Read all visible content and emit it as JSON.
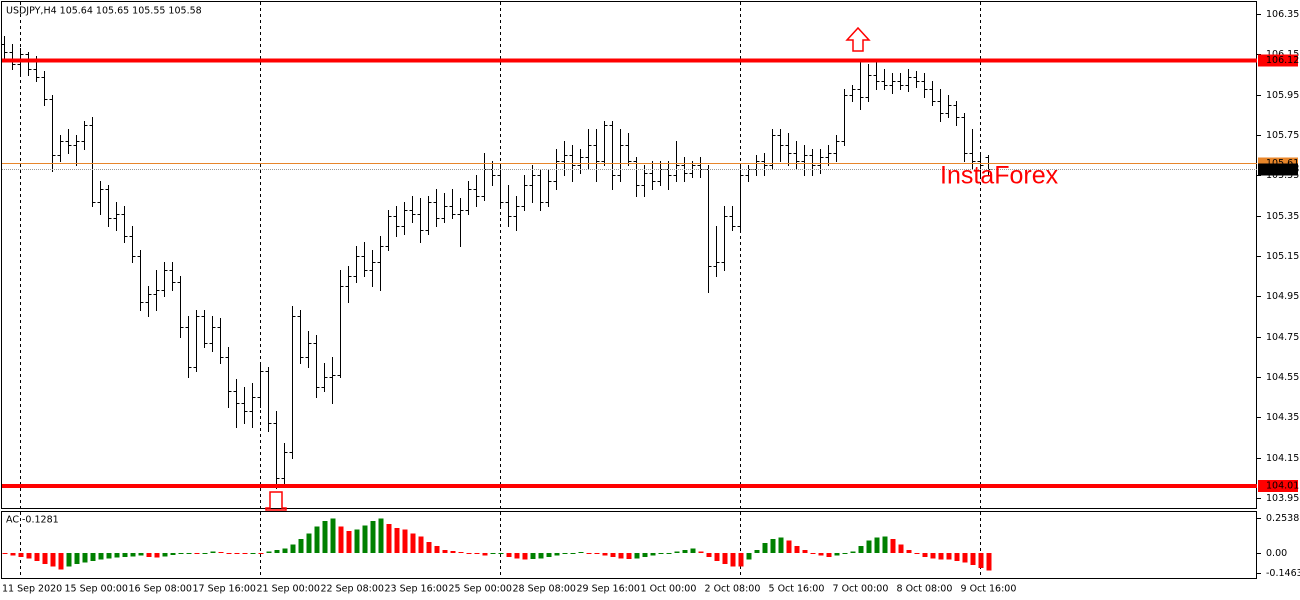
{
  "chart_data": [
    {
      "type": "ohlc",
      "title": "USDJPY,H4  105.64 105.65 105.55 105.58",
      "watermark": "InstaForex",
      "color": "#000000",
      "categories": [
        "11 Sep 2020",
        null,
        null,
        null,
        null,
        null,
        null,
        null,
        "15 Sep 00:00",
        null,
        null,
        null,
        null,
        null,
        null,
        null,
        "16 Sep 08:00",
        null,
        null,
        null,
        null,
        null,
        null,
        null,
        "17 Sep 16:00",
        null,
        null,
        null,
        null,
        null,
        null,
        null,
        "21 Sep 00:00",
        null,
        null,
        null,
        null,
        null,
        null,
        null,
        "22 Sep 08:00",
        null,
        null,
        null,
        null,
        null,
        null,
        null,
        "23 Sep 16:00",
        null,
        null,
        null,
        null,
        null,
        null,
        null,
        "25 Sep 00:00",
        null,
        null,
        null,
        null,
        null,
        null,
        null,
        "28 Sep 08:00",
        null,
        null,
        null,
        null,
        null,
        null,
        null,
        "29 Sep 16:00",
        null,
        null,
        null,
        null,
        null,
        null,
        null,
        "1 Oct 00:00",
        null,
        null,
        null,
        null,
        null,
        null,
        null,
        "2 Oct 08:00",
        null,
        null,
        null,
        null,
        null,
        null,
        null,
        "5 Oct 16:00",
        null,
        null,
        null,
        null,
        null,
        null,
        null,
        "7 Oct 00:00",
        null,
        null,
        null,
        null,
        null,
        null,
        null,
        "8 Oct 08:00",
        null,
        null,
        null,
        null,
        null,
        null,
        null,
        "9 Oct 16:00",
        null,
        null,
        null
      ],
      "open": [
        106.2,
        106.16,
        106.1,
        106.15,
        106.08,
        106.04,
        105.93,
        105.65,
        105.72,
        105.7,
        105.72,
        105.8,
        105.42,
        105.48,
        105.34,
        105.36,
        105.25,
        105.15,
        104.92,
        104.96,
        104.98,
        105.08,
        105.02,
        104.8,
        104.6,
        104.85,
        104.72,
        104.8,
        104.65,
        104.48,
        104.42,
        104.38,
        104.45,
        104.58,
        104.32,
        104.05,
        104.18,
        104.85,
        104.65,
        104.72,
        104.5,
        104.55,
        104.56,
        105.0,
        105.05,
        105.15,
        105.08,
        105.12,
        105.2,
        105.35,
        105.3,
        105.38,
        105.36,
        105.28,
        105.42,
        105.34,
        105.4,
        105.36,
        105.38,
        105.48,
        105.45,
        105.58,
        105.55,
        105.42,
        105.35,
        105.4,
        105.5,
        105.55,
        105.42,
        105.52,
        105.62,
        105.65,
        105.6,
        105.64,
        105.7,
        105.62,
        105.8,
        105.55,
        105.7,
        105.62,
        105.5,
        105.56,
        105.52,
        105.58,
        105.55,
        105.6,
        105.56,
        105.6,
        105.58,
        105.1,
        105.12,
        105.35,
        105.3,
        105.55,
        105.58,
        105.62,
        105.6,
        105.75,
        105.7,
        105.66,
        105.62,
        105.65,
        105.6,
        105.64,
        105.66,
        105.72,
        105.95,
        105.98,
        105.94,
        106.05,
        106.02,
        106.0,
        106.02,
        106.0,
        106.04,
        106.02,
        105.98,
        105.92,
        105.86,
        105.9,
        105.84,
        105.66,
        105.62,
        105.64
      ],
      "high": [
        106.24,
        106.2,
        106.18,
        106.16,
        106.14,
        106.07,
        105.95,
        105.75,
        105.78,
        105.75,
        105.82,
        105.84,
        105.52,
        105.5,
        105.42,
        105.4,
        105.3,
        105.18,
        105.0,
        105.08,
        105.12,
        105.12,
        105.05,
        104.85,
        104.88,
        104.88,
        104.85,
        104.84,
        104.7,
        104.54,
        104.5,
        104.52,
        104.62,
        104.6,
        104.38,
        104.22,
        104.9,
        104.88,
        104.78,
        104.76,
        104.62,
        104.65,
        105.08,
        105.1,
        105.2,
        105.22,
        105.18,
        105.25,
        105.38,
        105.4,
        105.42,
        105.45,
        105.44,
        105.45,
        105.48,
        105.46,
        105.48,
        105.44,
        105.52,
        105.55,
        105.66,
        105.62,
        105.6,
        105.5,
        105.45,
        105.55,
        105.6,
        105.58,
        105.58,
        105.68,
        105.72,
        105.7,
        105.68,
        105.78,
        105.78,
        105.82,
        105.82,
        105.78,
        105.76,
        105.64,
        105.6,
        105.62,
        105.62,
        105.62,
        105.72,
        105.64,
        105.62,
        105.64,
        105.6,
        105.3,
        105.4,
        105.4,
        105.6,
        105.6,
        105.65,
        105.66,
        105.78,
        105.78,
        105.76,
        105.72,
        105.7,
        105.68,
        105.68,
        105.7,
        105.75,
        105.98,
        106.0,
        106.12,
        106.1,
        106.12,
        106.08,
        106.06,
        106.06,
        106.08,
        106.07,
        106.06,
        106.02,
        105.98,
        105.95,
        105.92,
        105.86,
        105.78,
        105.65,
        105.65
      ],
      "low": [
        106.12,
        106.08,
        106.06,
        106.05,
        106.02,
        105.9,
        105.57,
        105.62,
        105.66,
        105.6,
        105.68,
        105.4,
        105.36,
        105.3,
        105.28,
        105.22,
        105.12,
        104.88,
        104.85,
        104.88,
        104.95,
        104.98,
        104.75,
        104.55,
        104.58,
        104.7,
        104.68,
        104.62,
        104.4,
        104.3,
        104.32,
        104.3,
        104.4,
        104.28,
        104.0,
        104.02,
        104.15,
        104.62,
        104.6,
        104.45,
        104.48,
        104.42,
        104.55,
        104.92,
        105.02,
        105.05,
        105.0,
        104.98,
        105.18,
        105.25,
        105.26,
        105.32,
        105.22,
        105.26,
        105.3,
        105.32,
        105.34,
        105.2,
        105.36,
        105.4,
        105.43,
        105.5,
        105.4,
        105.3,
        105.28,
        105.38,
        105.42,
        105.38,
        105.4,
        105.48,
        105.55,
        105.52,
        105.56,
        105.58,
        105.52,
        105.6,
        105.48,
        105.52,
        105.6,
        105.45,
        105.45,
        105.48,
        105.5,
        105.48,
        105.52,
        105.52,
        105.54,
        105.54,
        104.97,
        105.05,
        105.08,
        105.28,
        105.28,
        105.52,
        105.55,
        105.55,
        105.58,
        105.62,
        105.6,
        105.58,
        105.55,
        105.55,
        105.56,
        105.6,
        105.62,
        105.7,
        105.92,
        105.88,
        105.92,
        105.98,
        105.98,
        105.96,
        105.98,
        105.97,
        105.99,
        105.94,
        105.9,
        105.82,
        105.84,
        105.8,
        105.62,
        105.58,
        105.55,
        105.55
      ],
      "close": [
        106.16,
        106.1,
        106.15,
        106.08,
        106.04,
        105.93,
        105.65,
        105.72,
        105.7,
        105.72,
        105.8,
        105.42,
        105.48,
        105.34,
        105.36,
        105.25,
        105.15,
        104.92,
        104.96,
        104.98,
        105.08,
        105.02,
        104.8,
        104.6,
        104.85,
        104.72,
        104.8,
        104.65,
        104.48,
        104.42,
        104.38,
        104.45,
        104.58,
        104.32,
        104.05,
        104.18,
        104.85,
        104.65,
        104.72,
        104.5,
        104.55,
        104.56,
        105.0,
        105.05,
        105.15,
        105.08,
        105.12,
        105.2,
        105.35,
        105.3,
        105.38,
        105.36,
        105.28,
        105.42,
        105.34,
        105.4,
        105.36,
        105.38,
        105.48,
        105.45,
        105.58,
        105.55,
        105.42,
        105.35,
        105.4,
        105.5,
        105.55,
        105.42,
        105.52,
        105.62,
        105.65,
        105.6,
        105.64,
        105.7,
        105.62,
        105.8,
        105.55,
        105.7,
        105.62,
        105.5,
        105.56,
        105.52,
        105.58,
        105.55,
        105.6,
        105.56,
        105.6,
        105.58,
        105.1,
        105.12,
        105.35,
        105.3,
        105.55,
        105.58,
        105.62,
        105.6,
        105.75,
        105.7,
        105.66,
        105.62,
        105.65,
        105.6,
        105.64,
        105.66,
        105.72,
        105.95,
        105.98,
        105.94,
        106.05,
        106.02,
        106.0,
        106.02,
        106.0,
        106.04,
        106.02,
        105.98,
        105.92,
        105.86,
        105.9,
        105.84,
        105.66,
        105.62,
        105.6,
        105.58
      ],
      "ylim": [
        103.9,
        106.395
      ],
      "yticks": [
        106.35,
        106.15,
        105.95,
        105.75,
        105.55,
        105.35,
        105.15,
        104.95,
        104.75,
        104.55,
        104.35,
        104.15,
        103.95
      ],
      "levels": [
        {
          "value": 106.12,
          "color": "#ff0000"
        },
        {
          "value": 104.01,
          "color": "#ff0000"
        }
      ],
      "ask_line": {
        "value": 105.61,
        "color": "#e8862a"
      },
      "bid_line": {
        "value": 105.58,
        "color": "#000000"
      }
    },
    {
      "type": "histogram",
      "title": "AC -0.1281",
      "up_color": "#008000",
      "down_color": "#ff0000",
      "values": [
        -0.01,
        -0.02,
        -0.03,
        -0.04,
        -0.06,
        -0.08,
        -0.1,
        -0.12,
        -0.1,
        -0.08,
        -0.07,
        -0.06,
        -0.05,
        -0.04,
        -0.035,
        -0.03,
        -0.025,
        -0.02,
        -0.03,
        -0.035,
        -0.025,
        -0.015,
        -0.01,
        -0.005,
        -0.01,
        -0.005,
        0.01,
        0.005,
        -0.01,
        -0.01,
        -0.01,
        -0.005,
        -0.01,
        0.01,
        0.02,
        0.03,
        0.06,
        0.1,
        0.14,
        0.19,
        0.23,
        0.25,
        0.19,
        0.16,
        0.17,
        0.2,
        0.23,
        0.25,
        0.21,
        0.18,
        0.17,
        0.14,
        0.12,
        0.08,
        0.05,
        0.02,
        0.015,
        0.005,
        -0.005,
        -0.01,
        -0.02,
        -0.01,
        -0.005,
        -0.03,
        -0.04,
        -0.05,
        -0.045,
        -0.04,
        -0.03,
        -0.02,
        -0.01,
        -0.005,
        0.005,
        0,
        -0.01,
        -0.02,
        -0.03,
        -0.04,
        -0.045,
        -0.04,
        -0.03,
        -0.02,
        -0.01,
        0,
        0.01,
        0.02,
        0.03,
        0.01,
        -0.03,
        -0.06,
        -0.08,
        -0.1,
        -0.1,
        -0.05,
        0.02,
        0.07,
        0.1,
        0.11,
        0.09,
        0.05,
        0.02,
        -0.005,
        -0.02,
        -0.03,
        -0.02,
        -0.01,
        0.01,
        0.05,
        0.09,
        0.11,
        0.12,
        0.1,
        0.06,
        0.02,
        -0.01,
        -0.03,
        -0.04,
        -0.05,
        -0.05,
        -0.06,
        -0.07,
        -0.09,
        -0.11,
        -0.1281
      ],
      "ylim": [
        -0.183,
        0.297
      ],
      "yticks": [
        0.2538,
        {
          "value": 0,
          "label": "0.00"
        },
        -0.1463
      ]
    }
  ]
}
